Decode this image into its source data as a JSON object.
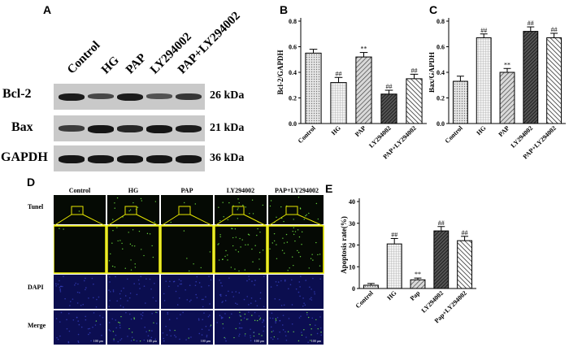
{
  "panels": {
    "a": "A",
    "b": "B",
    "c": "C",
    "d": "D",
    "e": "E"
  },
  "western_blot": {
    "groups": [
      "Control",
      "HG",
      "PAP",
      "LY294002",
      "PAP+LY294002"
    ],
    "rows": [
      {
        "protein": "Bcl-2",
        "size": "26 kDa",
        "intensity": [
          0.85,
          0.45,
          0.85,
          0.35,
          0.6
        ]
      },
      {
        "protein": "Bax",
        "size": "21 kDa",
        "intensity": [
          0.55,
          0.9,
          0.75,
          0.9,
          0.85
        ]
      },
      {
        "protein": "GAPDH",
        "size": "36 kDa",
        "intensity": [
          0.9,
          0.9,
          0.9,
          0.9,
          0.9
        ]
      }
    ]
  },
  "microscopy": {
    "columns": [
      "Control",
      "HG",
      "PAP",
      "LY294002",
      "PAP+LY294002"
    ],
    "rows": [
      "Tunel",
      "",
      "DAPI",
      "Merge"
    ],
    "scale_bar": "100 μm",
    "colors": {
      "zoom_box": "#e6e600",
      "tunel_dots": "#7cff4a",
      "dapi": "#1a1f8a"
    }
  },
  "chart_data": [
    {
      "id": "B",
      "type": "bar",
      "ylabel": "Bcl-2/GAPDH",
      "categories": [
        "Control",
        "HG",
        "PAP",
        "LY294002",
        "PAP+LY294002"
      ],
      "values": [
        0.55,
        0.32,
        0.52,
        0.23,
        0.35
      ],
      "errors": [
        0.03,
        0.04,
        0.035,
        0.03,
        0.035
      ],
      "annotations": [
        "",
        "##",
        "**",
        "##",
        "##"
      ],
      "ylim": [
        0,
        0.8
      ],
      "yticks": [
        "0.0",
        "0.2",
        "0.4",
        "0.6",
        "0.8"
      ],
      "patterns": [
        "dots",
        "grid",
        "diag",
        "diag-dark",
        "diag-fine"
      ]
    },
    {
      "id": "C",
      "type": "bar",
      "ylabel": "Bax/GAPDH",
      "categories": [
        "Control",
        "HG",
        "PAP",
        "LY294002",
        "PAP+LY294002"
      ],
      "values": [
        0.33,
        0.67,
        0.4,
        0.72,
        0.67
      ],
      "errors": [
        0.04,
        0.03,
        0.03,
        0.035,
        0.035
      ],
      "annotations": [
        "",
        "##",
        "**",
        "##",
        "##"
      ],
      "ylim": [
        0,
        0.8
      ],
      "yticks": [
        "0.0",
        "0.2",
        "0.4",
        "0.6",
        "0.8"
      ],
      "patterns": [
        "dots",
        "grid",
        "diag",
        "diag-dark",
        "diag-fine"
      ]
    },
    {
      "id": "E",
      "type": "bar",
      "ylabel": "Apoptosis rate(%)",
      "categories": [
        "Control",
        "HG",
        "Pap",
        "LY294002",
        "Pap+LY294002"
      ],
      "values": [
        1.5,
        20.5,
        4.0,
        26.5,
        22.0
      ],
      "errors": [
        0.8,
        2.5,
        0.8,
        2.0,
        2.0
      ],
      "annotations": [
        "",
        "##",
        "**",
        "##",
        "##"
      ],
      "ylim": [
        0,
        40
      ],
      "yticks": [
        "0",
        "10",
        "20",
        "30",
        "40"
      ],
      "patterns": [
        "dots",
        "grid",
        "diag",
        "diag-dark",
        "diag-fine"
      ]
    }
  ]
}
